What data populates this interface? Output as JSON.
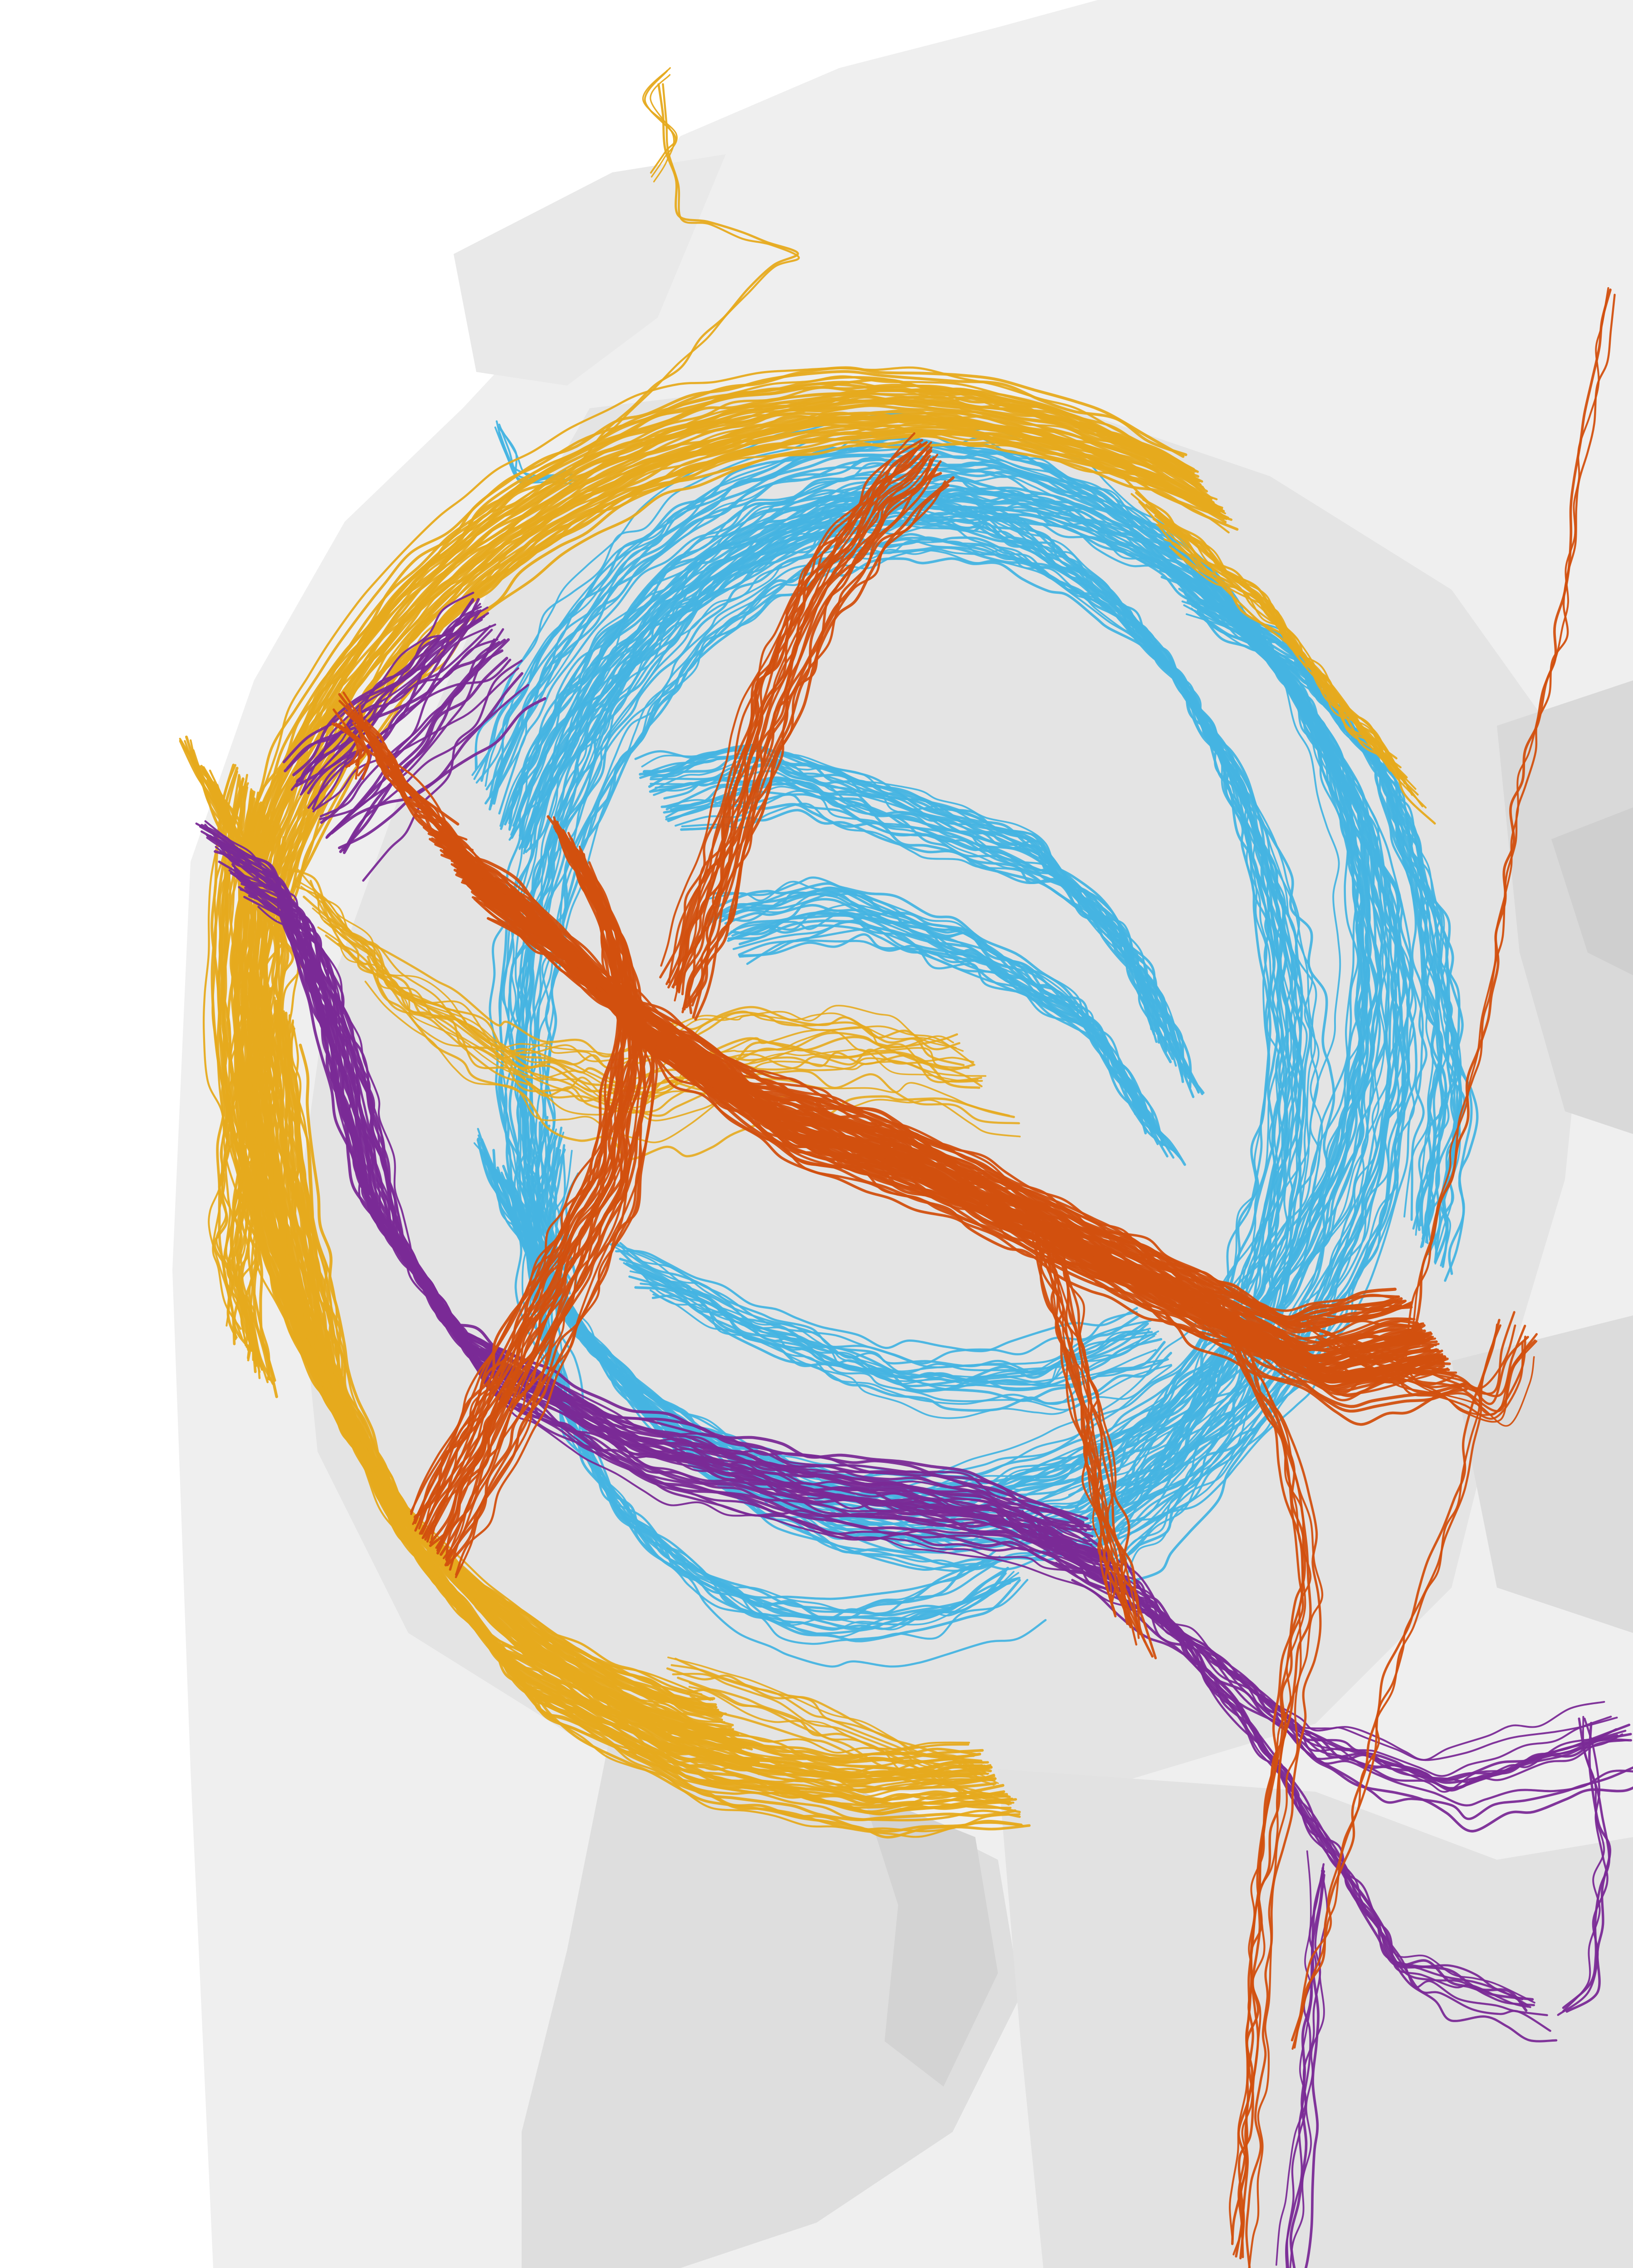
{
  "scene": {
    "background": "#ffffff",
    "mesh_colors": {
      "light": "#efefef",
      "mid": "#e4e4e4",
      "shade": "#d5d5d5",
      "dark": "#c9c9c9"
    }
  },
  "tracts": [
    {
      "name": "tract-yellow",
      "color": "#e6aa1e"
    },
    {
      "name": "tract-blue",
      "color": "#46b4e1"
    },
    {
      "name": "tract-orange",
      "color": "#d2500f"
    },
    {
      "name": "tract-purple",
      "color": "#7a2a96"
    }
  ]
}
